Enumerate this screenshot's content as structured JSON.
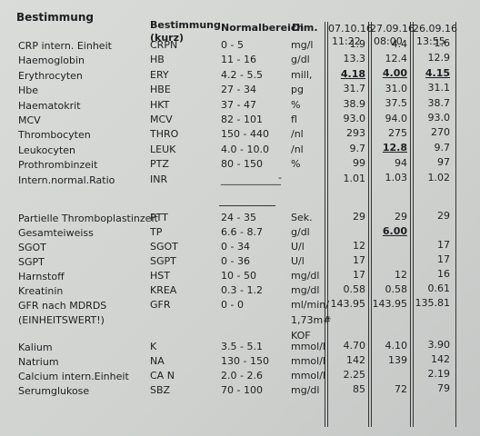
{
  "header": {
    "name": "Bestimmung",
    "short": [
      "Bestimmung",
      "(kurz)"
    ],
    "range": "Normalbereich",
    "unit": "Dim.",
    "dates": [
      {
        "date": "07.10.16",
        "time": "11:22"
      },
      {
        "date": "27.09.16",
        "time": "08:00"
      },
      {
        "date": "26.09.16",
        "time": "13:55"
      }
    ]
  },
  "table": {
    "rows": [
      {
        "name": "CRP intern. Einheit",
        "short": "CRPN",
        "range": "0 - 5",
        "unit": "mg/l",
        "values": [
          "1.9",
          "4.4",
          "1.6"
        ]
      },
      {
        "name": "Haemoglobin",
        "short": "HB",
        "range": "11 - 16",
        "unit": "g/dl",
        "values": [
          "13.3",
          "12.4",
          "12.9"
        ]
      },
      {
        "name": "Erythrocyten",
        "short": "ERY",
        "range": "4.2 - 5.5",
        "unit": "mill,",
        "values": [
          "4.18",
          "4.00",
          "4.15"
        ],
        "underlined": [
          0,
          1,
          2
        ]
      },
      {
        "name": "Hbe",
        "short": "HBE",
        "range": "27 - 34",
        "unit": "pg",
        "values": [
          "31.7",
          "31.0",
          "31.1"
        ]
      },
      {
        "name": "Haematokrit",
        "short": "HKT",
        "range": "37 - 47",
        "unit": "%",
        "values": [
          "38.9",
          "37.5",
          "38.7"
        ]
      },
      {
        "name": "MCV",
        "short": "MCV",
        "range": "82 - 101",
        "unit": "fl",
        "values": [
          "93.0",
          "94.0",
          "93.0"
        ]
      },
      {
        "name": "Thrombocyten",
        "short": "THRO",
        "range": "150 - 440",
        "unit": "/nl",
        "values": [
          "293",
          "275",
          "270"
        ]
      },
      {
        "name": "Leukocyten",
        "short": "LEUK",
        "range": "4.0 - 10.0",
        "unit": "/nl",
        "values": [
          "9.7",
          "12.8",
          "9.7"
        ],
        "underlined": [
          1
        ]
      },
      {
        "name": "Prothrombinzeit",
        "short": "PTZ",
        "range": "80 - 150",
        "unit": "%",
        "values": [
          "99",
          "94",
          "97"
        ]
      },
      {
        "name": "Intern.normal.Ratio",
        "short": "INR",
        "range": "____________",
        "unit": "-",
        "values": [
          "1.01",
          "1.03",
          "1.02"
        ]
      },
      {
        "name": "Partielle Thromboplastinzeit",
        "short": "PTT",
        "range": "24 - 35",
        "unit": "Sek.",
        "values": [
          "29",
          "29",
          "29"
        ]
      },
      {
        "name": "Gesamteiweiss",
        "short": "TP",
        "range": "6.6 - 8.7",
        "unit": "g/dl",
        "values": [
          null,
          "6.00",
          null
        ],
        "underlined": [
          1
        ]
      },
      {
        "name": "SGOT",
        "short": "SGOT",
        "range": "0 - 34",
        "unit": "U/l",
        "values": [
          "12",
          null,
          "17"
        ]
      },
      {
        "name": "SGPT",
        "short": "SGPT",
        "range": "0 - 36",
        "unit": "U/l",
        "values": [
          "17",
          null,
          "17"
        ]
      },
      {
        "name": "Harnstoff",
        "short": "HST",
        "range": "10 - 50",
        "unit": "mg/dl",
        "values": [
          "17",
          "12",
          "16"
        ]
      },
      {
        "name": "Kreatinin",
        "short": "KREA",
        "range": "0.3 - 1.2",
        "unit": "mg/dl",
        "values": [
          "0.58",
          "0.58",
          "0.61"
        ]
      },
      {
        "name": "GFR nach MDRDS",
        "name_cont": "(EINHEITSWERT!)",
        "short": "GFR",
        "range": "0 - 0",
        "unit": "ml/min/",
        "unit_cont": [
          "1,73m#",
          "KOF"
        ],
        "values": [
          "143.95",
          "143.95",
          "135.81"
        ]
      },
      {
        "name": "Kalium",
        "short": "K",
        "range": "3.5 - 5.1",
        "unit": "mmol/l",
        "values": [
          "4.70",
          "4.10",
          "3.90"
        ]
      },
      {
        "name": "Natrium",
        "short": "NA",
        "range": "130 - 150",
        "unit": "mmol/l",
        "values": [
          "142",
          "139",
          "142"
        ]
      },
      {
        "name": "Calcium intern.Einheit",
        "short": "CA N",
        "range": "2.0 - 2.6",
        "unit": "mmol/l",
        "values": [
          "2.25",
          null,
          "2.19"
        ]
      },
      {
        "name": "Serumglukose",
        "short": "SBZ",
        "range": "70 - 100",
        "unit": "mg/dl",
        "values": [
          "85",
          "72",
          "79"
        ]
      }
    ]
  }
}
